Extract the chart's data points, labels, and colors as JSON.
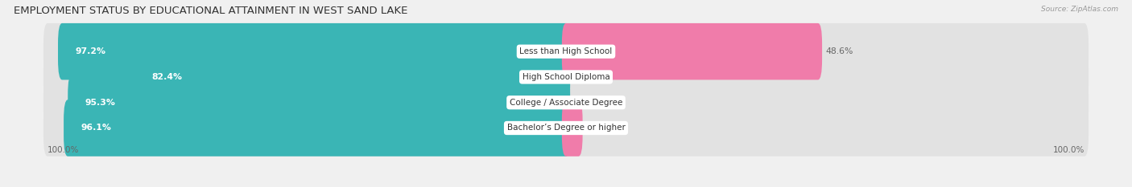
{
  "title": "EMPLOYMENT STATUS BY EDUCATIONAL ATTAINMENT IN WEST SAND LAKE",
  "source": "Source: ZipAtlas.com",
  "categories": [
    "Less than High School",
    "High School Diploma",
    "College / Associate Degree",
    "Bachelor’s Degree or higher"
  ],
  "labor_force_values": [
    97.2,
    82.4,
    95.3,
    96.1
  ],
  "unemployed_values": [
    48.6,
    0.0,
    0.0,
    2.4
  ],
  "labor_force_color": "#3ab5b5",
  "unemployed_color": "#f07caa",
  "background_color": "#f0f0f0",
  "bar_bg_color": "#e2e2e2",
  "x_left_label": "100.0%",
  "x_right_label": "100.0%",
  "max_val": 100.0,
  "title_fontsize": 9.5,
  "label_fontsize": 7.8,
  "cat_fontsize": 7.5,
  "tick_fontsize": 7.5,
  "bar_height": 0.62,
  "figsize": [
    14.06,
    2.33
  ],
  "dpi": 100
}
